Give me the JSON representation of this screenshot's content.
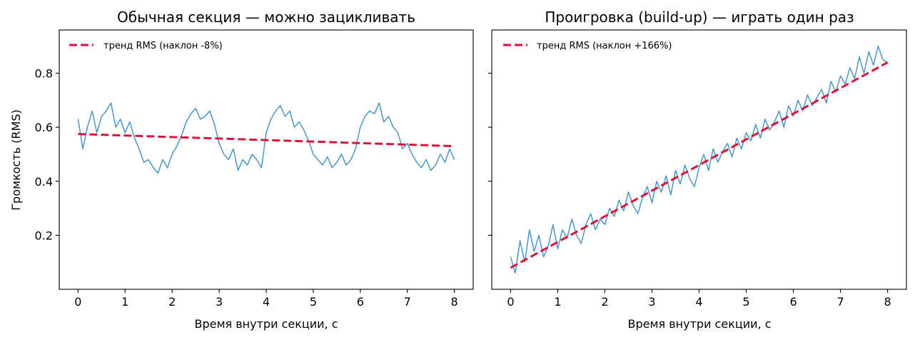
{
  "shared_ylabel": "Громкость (RMS)",
  "colors": {
    "signal": "#4c96c4",
    "trend": "#d6163e"
  },
  "chart_data": [
    {
      "type": "line",
      "title": "Обычная секция — можно зацикливать",
      "xlabel": "Время внутри секции, с",
      "ylabel": "Громкость (RMS)",
      "xlim": [
        -0.4,
        8.4
      ],
      "ylim": [
        0,
        0.96
      ],
      "xticks": [
        "0",
        "1",
        "2",
        "3",
        "4",
        "5",
        "6",
        "7",
        "8"
      ],
      "yticks": [
        "0.2",
        "0.4",
        "0.6",
        "0.8"
      ],
      "legend": {
        "position": "top-left",
        "entries": [
          "тренд RMS (наклон -8%)"
        ]
      },
      "series": [
        {
          "role": "signal",
          "x": [
            0,
            0.1,
            0.2,
            0.3,
            0.4,
            0.5,
            0.6,
            0.7,
            0.8,
            0.9,
            1.0,
            1.1,
            1.2,
            1.3,
            1.4,
            1.5,
            1.6,
            1.7,
            1.8,
            1.9,
            2.0,
            2.1,
            2.2,
            2.3,
            2.4,
            2.5,
            2.6,
            2.7,
            2.8,
            2.9,
            3.0,
            3.1,
            3.2,
            3.3,
            3.4,
            3.5,
            3.6,
            3.7,
            3.8,
            3.9,
            4.0,
            4.1,
            4.2,
            4.3,
            4.4,
            4.5,
            4.6,
            4.7,
            4.8,
            4.9,
            5.0,
            5.1,
            5.2,
            5.3,
            5.4,
            5.5,
            5.6,
            5.7,
            5.8,
            5.9,
            6.0,
            6.1,
            6.2,
            6.3,
            6.4,
            6.5,
            6.6,
            6.7,
            6.8,
            6.9,
            7.0,
            7.1,
            7.2,
            7.3,
            7.4,
            7.5,
            7.6,
            7.7,
            7.8,
            7.9,
            8.0
          ],
          "y": [
            0.63,
            0.52,
            0.6,
            0.66,
            0.58,
            0.64,
            0.66,
            0.69,
            0.6,
            0.63,
            0.58,
            0.62,
            0.56,
            0.52,
            0.47,
            0.48,
            0.45,
            0.43,
            0.48,
            0.45,
            0.5,
            0.53,
            0.57,
            0.62,
            0.65,
            0.67,
            0.63,
            0.64,
            0.66,
            0.61,
            0.54,
            0.5,
            0.48,
            0.52,
            0.44,
            0.48,
            0.46,
            0.5,
            0.48,
            0.45,
            0.58,
            0.63,
            0.66,
            0.68,
            0.64,
            0.66,
            0.6,
            0.62,
            0.59,
            0.55,
            0.5,
            0.48,
            0.46,
            0.49,
            0.45,
            0.47,
            0.5,
            0.46,
            0.48,
            0.52,
            0.6,
            0.64,
            0.66,
            0.65,
            0.69,
            0.62,
            0.64,
            0.6,
            0.58,
            0.52,
            0.54,
            0.5,
            0.47,
            0.45,
            0.48,
            0.44,
            0.46,
            0.5,
            0.47,
            0.52,
            0.48
          ]
        },
        {
          "role": "trend",
          "name": "тренд RMS (наклон -8%)",
          "x": [
            0,
            8
          ],
          "y": [
            0.575,
            0.53
          ]
        }
      ]
    },
    {
      "type": "line",
      "title": "Проигровка (build-up) — играть один раз",
      "xlabel": "Время внутри секции, с",
      "xlim": [
        -0.4,
        8.4
      ],
      "ylim": [
        0,
        0.96
      ],
      "xticks": [
        "0",
        "1",
        "2",
        "3",
        "4",
        "5",
        "6",
        "7",
        "8"
      ],
      "yticks": [],
      "legend": {
        "position": "top-left",
        "entries": [
          "тренд RMS (наклон +166%)"
        ]
      },
      "series": [
        {
          "role": "signal",
          "x": [
            0,
            0.1,
            0.2,
            0.3,
            0.4,
            0.5,
            0.6,
            0.7,
            0.8,
            0.9,
            1.0,
            1.1,
            1.2,
            1.3,
            1.4,
            1.5,
            1.6,
            1.7,
            1.8,
            1.9,
            2.0,
            2.1,
            2.2,
            2.3,
            2.4,
            2.5,
            2.6,
            2.7,
            2.8,
            2.9,
            3.0,
            3.1,
            3.2,
            3.3,
            3.4,
            3.5,
            3.6,
            3.7,
            3.8,
            3.9,
            4.0,
            4.1,
            4.2,
            4.3,
            4.4,
            4.5,
            4.6,
            4.7,
            4.8,
            4.9,
            5.0,
            5.1,
            5.2,
            5.3,
            5.4,
            5.5,
            5.6,
            5.7,
            5.8,
            5.9,
            6.0,
            6.1,
            6.2,
            6.3,
            6.4,
            6.5,
            6.6,
            6.7,
            6.8,
            6.9,
            7.0,
            7.1,
            7.2,
            7.3,
            7.4,
            7.5,
            7.6,
            7.7,
            7.8,
            7.9,
            8.0
          ],
          "y": [
            0.12,
            0.06,
            0.18,
            0.1,
            0.22,
            0.14,
            0.2,
            0.12,
            0.16,
            0.24,
            0.15,
            0.22,
            0.19,
            0.26,
            0.2,
            0.17,
            0.24,
            0.28,
            0.22,
            0.26,
            0.24,
            0.3,
            0.27,
            0.33,
            0.29,
            0.36,
            0.31,
            0.28,
            0.34,
            0.38,
            0.32,
            0.4,
            0.36,
            0.42,
            0.35,
            0.44,
            0.39,
            0.46,
            0.41,
            0.38,
            0.45,
            0.5,
            0.44,
            0.52,
            0.47,
            0.51,
            0.54,
            0.49,
            0.56,
            0.52,
            0.58,
            0.55,
            0.61,
            0.56,
            0.63,
            0.59,
            0.62,
            0.66,
            0.6,
            0.68,
            0.64,
            0.7,
            0.66,
            0.72,
            0.68,
            0.71,
            0.74,
            0.69,
            0.77,
            0.73,
            0.79,
            0.76,
            0.82,
            0.78,
            0.86,
            0.8,
            0.88,
            0.83,
            0.9,
            0.85,
            0.84
          ]
        },
        {
          "role": "trend",
          "name": "тренд RMS (наклон +166%)",
          "x": [
            0,
            8
          ],
          "y": [
            0.08,
            0.84
          ]
        }
      ]
    }
  ]
}
